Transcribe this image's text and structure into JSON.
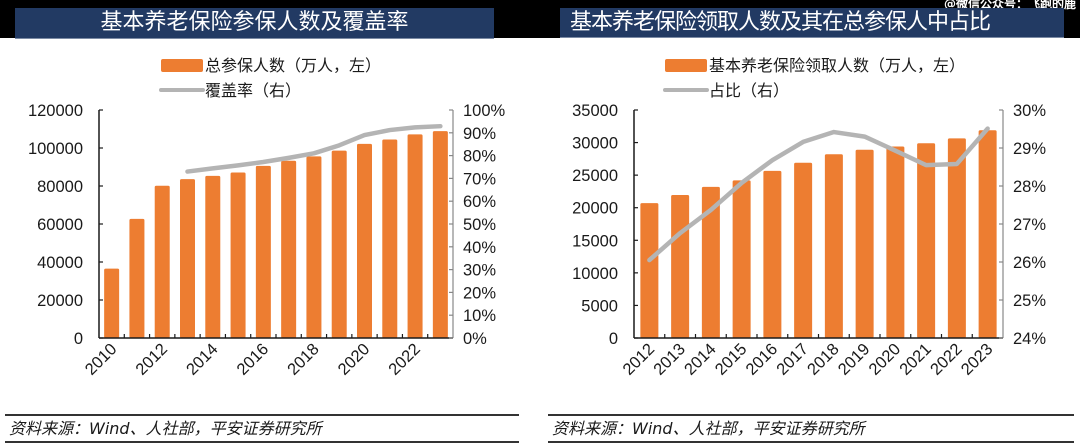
{
  "header": {
    "left_title": "基本养老保险参保人数及覆盖率",
    "right_title": "基本养老保险领取人数及其在总参保人中占比",
    "watermark": "@微信公众号：飞跑的鹿"
  },
  "footer": {
    "left_source": "资料来源：Wind、人社部，平安证券研究所",
    "right_source": "资料来源：Wind、人社部，平安证券研究所"
  },
  "colors": {
    "bar": "#ed7d31",
    "line": "#b4b4b4",
    "title_bg": "#223a63",
    "axis": "#1a1a1a"
  },
  "chart_data": [
    {
      "type": "bar",
      "title": "基本养老保险参保人数及覆盖率",
      "categories": [
        "2010",
        "2011",
        "2012",
        "2013",
        "2014",
        "2015",
        "2016",
        "2017",
        "2018",
        "2019",
        "2020",
        "2021",
        "2022",
        "2023"
      ],
      "x_tick_labels": [
        "2010",
        "2012",
        "2014",
        "2016",
        "2018",
        "2020",
        "2022"
      ],
      "series": [
        {
          "name": "总参保人数（万人，左）",
          "type": "bar",
          "axis": "left",
          "values": [
            36500,
            62700,
            80100,
            83600,
            85300,
            87100,
            90600,
            93300,
            95600,
            98600,
            102200,
            104500,
            107200,
            108900
          ]
        },
        {
          "name": "覆盖率（右）",
          "type": "line",
          "axis": "right",
          "values": [
            null,
            null,
            null,
            73.0,
            74.4,
            75.7,
            77.2,
            79.0,
            81.0,
            84.5,
            89.0,
            91.2,
            92.4,
            92.9
          ]
        }
      ],
      "y_left": {
        "lim": [
          0,
          120000
        ],
        "ticks": [
          "0",
          "20000",
          "40000",
          "60000",
          "80000",
          "100000",
          "120000"
        ]
      },
      "y_right": {
        "lim": [
          0,
          100
        ],
        "ticks": [
          "0%",
          "10%",
          "20%",
          "30%",
          "40%",
          "50%",
          "60%",
          "70%",
          "80%",
          "90%",
          "100%"
        ]
      },
      "legend": "top-center",
      "grid": false
    },
    {
      "type": "bar",
      "title": "基本养老保险领取人数及其在总参保人中占比",
      "categories": [
        "2012",
        "2013",
        "2014",
        "2015",
        "2016",
        "2017",
        "2018",
        "2019",
        "2020",
        "2021",
        "2022",
        "2023"
      ],
      "x_tick_labels": [
        "2012",
        "2013",
        "2014",
        "2015",
        "2016",
        "2017",
        "2018",
        "2019",
        "2020",
        "2021",
        "2022",
        "2023"
      ],
      "series": [
        {
          "name": "基本养老保险领取人数（万人，左）",
          "type": "bar",
          "axis": "left",
          "values": [
            20700,
            21950,
            23200,
            24200,
            25650,
            26900,
            28200,
            28900,
            29400,
            29900,
            30650,
            31900
          ]
        },
        {
          "name": "占比（右）",
          "type": "line",
          "axis": "right",
          "values": [
            26.05,
            26.76,
            27.37,
            28.08,
            28.68,
            29.16,
            29.42,
            29.3,
            28.93,
            28.55,
            28.58,
            29.51
          ]
        }
      ],
      "y_left": {
        "lim": [
          0,
          35000
        ],
        "ticks": [
          "0",
          "5000",
          "10000",
          "15000",
          "20000",
          "25000",
          "30000",
          "35000"
        ]
      },
      "y_right": {
        "lim": [
          24,
          30
        ],
        "ticks": [
          "24%",
          "25%",
          "26%",
          "27%",
          "28%",
          "29%",
          "30%"
        ]
      },
      "legend": "top-center",
      "grid": false
    }
  ]
}
